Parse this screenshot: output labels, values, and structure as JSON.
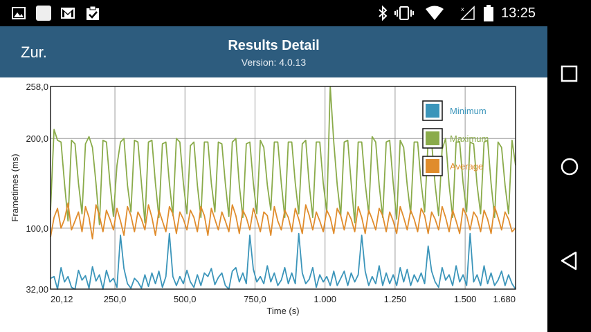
{
  "status_bar": {
    "time": "13:25",
    "left_icons": [
      "image-icon",
      "app-icon",
      "gmail-icon",
      "clipboard-check-icon"
    ],
    "right_icons": [
      "bluetooth-icon",
      "vibrate-icon",
      "wifi-icon",
      "signal-icon",
      "battery-icon"
    ]
  },
  "action_bar": {
    "back_label": "Zur.",
    "title": "Results Detail",
    "subtitle": "Version: 4.0.13",
    "color": "#2d5c7e"
  },
  "nav_bar": {
    "buttons": [
      "recents-square-icon",
      "home-circle-icon",
      "back-triangle-icon"
    ]
  },
  "chart_data": {
    "type": "line",
    "xlabel": "Time (s)",
    "ylabel": "Frametimes (ms)",
    "y_ticks": [
      "32,00",
      "100,0",
      "200,0",
      "258,0"
    ],
    "y_tick_values": [
      32,
      100,
      200,
      258
    ],
    "x_ticks": [
      "20,12",
      "250,0",
      "500,0",
      "750,0",
      "1.000",
      "1.250",
      "1.500",
      "1.680"
    ],
    "x_tick_values": [
      20.12,
      250,
      500,
      750,
      1000,
      1250,
      1500,
      1680
    ],
    "xlim": [
      20.12,
      1680
    ],
    "ylim": [
      32,
      258
    ],
    "grid": true,
    "legend_position": "top-right",
    "series": [
      {
        "name": "Minimum",
        "color": "#3b95ba",
        "values": [
          44,
          46,
          32,
          56,
          40,
          46,
          34,
          32,
          53,
          42,
          47,
          33,
          57,
          41,
          48,
          32,
          53,
          40,
          44,
          34,
          92,
          55,
          38,
          33,
          44,
          40,
          33,
          48,
          35,
          50,
          38,
          52,
          34,
          46,
          94,
          46,
          36,
          46,
          38,
          53,
          40,
          34,
          48,
          36,
          50,
          46,
          55,
          37,
          45,
          50,
          36,
          32,
          52,
          56,
          40,
          50,
          38,
          92,
          54,
          40,
          46,
          38,
          58,
          40,
          50,
          36,
          42,
          56,
          38,
          50,
          38,
          94,
          50,
          38,
          43,
          56,
          34,
          48,
          40,
          46,
          36,
          52,
          36,
          44,
          52,
          36,
          50,
          40,
          48,
          92,
          52,
          36,
          46,
          38,
          58,
          36,
          50,
          38,
          48,
          36,
          56,
          40,
          54,
          36,
          48,
          40,
          50,
          38,
          80,
          52,
          40,
          34,
          56,
          42,
          48,
          36,
          58,
          40,
          48,
          36,
          94,
          40,
          48,
          36,
          58,
          38,
          50,
          36,
          42,
          52,
          36,
          48,
          38,
          32
        ]
      },
      {
        "name": "Maximum",
        "color": "#8aab4a",
        "values": [
          120,
          210,
          198,
          196,
          150,
          108,
          198,
          194,
          150,
          116,
          194,
          202,
          190,
          150,
          104,
          198,
          196,
          150,
          113,
          170,
          196,
          200,
          148,
          118,
          198,
          196,
          150,
          106,
          196,
          198,
          150,
          112,
          194,
          196,
          150,
          114,
          200,
          196,
          150,
          116,
          192,
          196,
          148,
          112,
          196,
          196,
          150,
          118,
          196,
          194,
          150,
          113,
          196,
          200,
          148,
          112,
          194,
          196,
          150,
          116,
          198,
          190,
          148,
          120,
          196,
          196,
          150,
          112,
          196,
          196,
          150,
          116,
          194,
          198,
          148,
          112,
          196,
          196,
          150,
          118,
          258,
          196,
          148,
          114,
          196,
          198,
          150,
          106,
          196,
          196,
          150,
          116,
          202,
          196,
          148,
          112,
          196,
          198,
          150,
          110,
          198,
          190,
          148,
          116,
          196,
          196,
          150,
          118,
          198,
          196,
          148,
          114,
          188,
          200,
          148,
          112,
          196,
          196,
          150,
          118,
          196,
          194,
          148,
          116,
          196,
          198,
          150,
          112,
          196,
          190,
          148,
          116,
          198,
          170
        ]
      },
      {
        "name": "Average",
        "color": "#e08c2c",
        "values": [
          90,
          112,
          122,
          100,
          110,
          128,
          98,
          108,
          118,
          96,
          124,
          112,
          88,
          126,
          114,
          96,
          120,
          110,
          98,
          122,
          108,
          92,
          124,
          114,
          96,
          118,
          110,
          98,
          126,
          112,
          92,
          120,
          108,
          96,
          124,
          116,
          94,
          118,
          110,
          98,
          120,
          112,
          96,
          124,
          114,
          92,
          122,
          110,
          98,
          118,
          108,
          96,
          126,
          114,
          94,
          120,
          112,
          98,
          122,
          110,
          96,
          118,
          114,
          92,
          124,
          108,
          98,
          120,
          112,
          96,
          122,
          110,
          94,
          126,
          114,
          98,
          118,
          108,
          96,
          120,
          112,
          94,
          122,
          114,
          98,
          118,
          110,
          96,
          124,
          112,
          94,
          120,
          110,
          98,
          122,
          114,
          96,
          118,
          108,
          94,
          124,
          112,
          98,
          120,
          110,
          96,
          122,
          114,
          94,
          118,
          110,
          98,
          124,
          112,
          96,
          120,
          108,
          94,
          122,
          114,
          98,
          118,
          112,
          96,
          120,
          110,
          94,
          124,
          112,
          98,
          118,
          110,
          96,
          100
        ]
      }
    ]
  }
}
